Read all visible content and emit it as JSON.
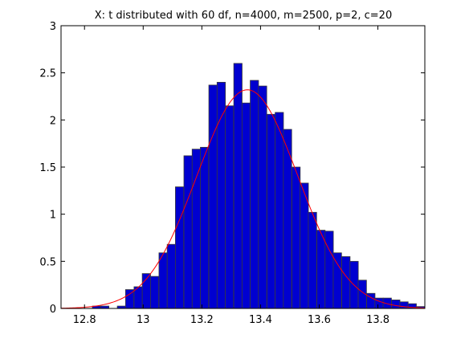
{
  "chart_data": {
    "type": "bar",
    "title": "X: t distributed with 60 df, n=4000, m=2500, p=2, c=20",
    "xlabel": "",
    "ylabel": "",
    "xlim": [
      12.72,
      13.96
    ],
    "ylim": [
      0,
      3
    ],
    "x_ticks": [
      12.8,
      13,
      13.2,
      13.4,
      13.6,
      13.8
    ],
    "x_tick_labels": [
      "12.8",
      "13",
      "13.2",
      "13.4",
      "13.6",
      "13.8"
    ],
    "y_ticks": [
      0,
      0.5,
      1,
      1.5,
      2,
      2.5,
      3
    ],
    "y_tick_labels": [
      "0",
      "0.5",
      "1",
      "1.5",
      "2",
      "2.5",
      "3"
    ],
    "bin_width": 0.0283,
    "bins": [
      {
        "x": 12.841,
        "y": 0.025
      },
      {
        "x": 12.869,
        "y": 0.025
      },
      {
        "x": 12.926,
        "y": 0.025
      },
      {
        "x": 12.954,
        "y": 0.2
      },
      {
        "x": 12.983,
        "y": 0.23
      },
      {
        "x": 13.011,
        "y": 0.37
      },
      {
        "x": 13.039,
        "y": 0.34
      },
      {
        "x": 13.068,
        "y": 0.59
      },
      {
        "x": 13.096,
        "y": 0.68
      },
      {
        "x": 13.124,
        "y": 1.29
      },
      {
        "x": 13.153,
        "y": 1.62
      },
      {
        "x": 13.181,
        "y": 1.69
      },
      {
        "x": 13.209,
        "y": 1.71
      },
      {
        "x": 13.238,
        "y": 2.37
      },
      {
        "x": 13.266,
        "y": 2.4
      },
      {
        "x": 13.294,
        "y": 2.15
      },
      {
        "x": 13.323,
        "y": 2.6
      },
      {
        "x": 13.351,
        "y": 2.18
      },
      {
        "x": 13.379,
        "y": 2.42
      },
      {
        "x": 13.407,
        "y": 2.36
      },
      {
        "x": 13.436,
        "y": 2.06
      },
      {
        "x": 13.464,
        "y": 2.08
      },
      {
        "x": 13.492,
        "y": 1.9
      },
      {
        "x": 13.521,
        "y": 1.5
      },
      {
        "x": 13.549,
        "y": 1.33
      },
      {
        "x": 13.577,
        "y": 1.02
      },
      {
        "x": 13.606,
        "y": 0.83
      },
      {
        "x": 13.634,
        "y": 0.82
      },
      {
        "x": 13.662,
        "y": 0.59
      },
      {
        "x": 13.691,
        "y": 0.55
      },
      {
        "x": 13.719,
        "y": 0.5
      },
      {
        "x": 13.747,
        "y": 0.3
      },
      {
        "x": 13.776,
        "y": 0.16
      },
      {
        "x": 13.804,
        "y": 0.11
      },
      {
        "x": 13.832,
        "y": 0.11
      },
      {
        "x": 13.861,
        "y": 0.09
      },
      {
        "x": 13.889,
        "y": 0.07
      },
      {
        "x": 13.917,
        "y": 0.05
      },
      {
        "x": 13.946,
        "y": 0.02
      }
    ],
    "fit_curve": {
      "mean": 13.355,
      "sd": 0.172,
      "peak": 2.32,
      "x_range": [
        12.72,
        13.96
      ]
    },
    "colors": {
      "bar_fill": "#0000d0",
      "bar_edge": "#3a3a3a",
      "curve": "#ff0000",
      "axes": "#000000"
    },
    "grid": false,
    "legend": "none"
  }
}
